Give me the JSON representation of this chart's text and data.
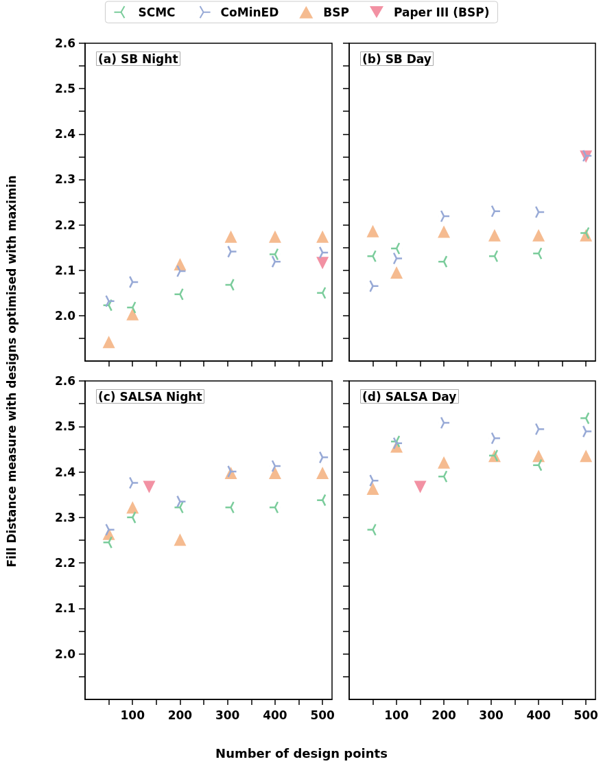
{
  "chart_data": [
    {
      "type": "scatter",
      "title": "(a) SB Night",
      "xlabel": "Number of design points",
      "ylabel": "Fill Distance measure with designs optimised with maximin",
      "legend": "top",
      "tick_labels": "y",
      "xlim": [
        0,
        520
      ],
      "xticks": [
        {
          "value": 50,
          "label": null
        },
        {
          "value": 100,
          "label": null
        },
        {
          "value": 150,
          "label": null
        },
        {
          "value": 200,
          "label": null
        },
        {
          "value": 250,
          "label": null
        },
        {
          "value": 300,
          "label": null
        },
        {
          "value": 350,
          "label": null
        },
        {
          "value": 400,
          "label": null
        },
        {
          "value": 450,
          "label": null
        },
        {
          "value": 500,
          "label": null
        }
      ],
      "ylim": [
        1.9,
        2.6
      ],
      "yticks": [
        {
          "value": 1.95,
          "label": null
        },
        {
          "value": 2,
          "label": "2.0"
        },
        {
          "value": 2.05,
          "label": null
        },
        2.1,
        {
          "value": 2.15,
          "label": null
        },
        2.2,
        {
          "value": 2.25,
          "label": null
        },
        2.3,
        {
          "value": 2.35,
          "label": null
        },
        2.4,
        {
          "value": 2.45,
          "label": null
        },
        2.5,
        {
          "value": 2.55,
          "label": null
        },
        2.6
      ],
      "series": [
        {
          "name": "SCMC",
          "color": "#7acc9b",
          "marker": "cross",
          "x": [
            50,
            100,
            200,
            307,
            400,
            500
          ],
          "values": [
            2.023,
            2.018,
            2.047,
            2.068,
            2.135,
            2.05
          ]
        },
        {
          "name": "CoMinED",
          "color": "#97a9d6",
          "marker": "cross",
          "x": [
            50,
            100,
            200,
            307,
            400,
            500
          ],
          "values": [
            2.032,
            2.074,
            2.098,
            2.141,
            2.119,
            2.139
          ]
        },
        {
          "name": "BSP",
          "color": "#f5bb90",
          "marker": "triangle",
          "x": [
            50,
            100,
            200,
            307,
            400,
            500
          ],
          "values": [
            1.942,
            2.003,
            2.113,
            2.174,
            2.174,
            2.174
          ]
        },
        {
          "name": "Paper III (BSP)",
          "color": "#f291a3",
          "marker": "triangle_down",
          "x": [
            500
          ],
          "values": [
            2.116
          ]
        }
      ]
    },
    {
      "type": "scatter",
      "title": "(b) SB Day",
      "tick_labels": false,
      "xlim": [
        0,
        520
      ],
      "xticks": [
        {
          "value": 50,
          "label": null
        },
        {
          "value": 100,
          "label": null
        },
        {
          "value": 150,
          "label": null
        },
        {
          "value": 200,
          "label": null
        },
        {
          "value": 250,
          "label": null
        },
        {
          "value": 300,
          "label": null
        },
        {
          "value": 350,
          "label": null
        },
        {
          "value": 400,
          "label": null
        },
        {
          "value": 450,
          "label": null
        },
        {
          "value": 500,
          "label": null
        }
      ],
      "ylim": [
        1.9,
        2.6
      ],
      "yticks": [
        {
          "value": 1.95,
          "label": null
        },
        {
          "value": 2,
          "label": null
        },
        {
          "value": 2.05,
          "label": null
        },
        {
          "value": 2.1,
          "label": null
        },
        {
          "value": 2.15,
          "label": null
        },
        {
          "value": 2.2,
          "label": null
        },
        {
          "value": 2.25,
          "label": null
        },
        {
          "value": 2.3,
          "label": null
        },
        {
          "value": 2.35,
          "label": null
        },
        {
          "value": 2.4,
          "label": null
        },
        {
          "value": 2.45,
          "label": null
        },
        {
          "value": 2.5,
          "label": null
        },
        {
          "value": 2.55,
          "label": null
        },
        {
          "value": 2.6,
          "label": null
        }
      ],
      "series": [
        {
          "name": "SCMC",
          "color": "#7acc9b",
          "marker": "cross",
          "x": [
            50,
            100,
            200,
            307,
            400,
            500
          ],
          "values": [
            2.131,
            2.148,
            2.119,
            2.131,
            2.137,
            2.182
          ]
        },
        {
          "name": "CoMinED",
          "color": "#97a9d6",
          "marker": "cross",
          "x": [
            50,
            100,
            200,
            307,
            400,
            500
          ],
          "values": [
            2.065,
            2.126,
            2.219,
            2.23,
            2.228,
            2.352
          ]
        },
        {
          "name": "BSP",
          "color": "#f5bb90",
          "marker": "triangle",
          "x": [
            50,
            100,
            200,
            307,
            400,
            500
          ],
          "values": [
            2.186,
            2.095,
            2.185,
            2.177,
            2.177,
            2.177
          ]
        },
        {
          "name": "Paper III (BSP)",
          "color": "#f291a3",
          "marker": "triangle_down",
          "x": [
            500
          ],
          "values": [
            2.35
          ]
        }
      ]
    },
    {
      "type": "scatter",
      "title": "(c) SALSA Night",
      "xlim": [
        0,
        520
      ],
      "xticks": [
        {
          "value": 50,
          "label": null
        },
        100,
        {
          "value": 150,
          "label": null
        },
        200,
        {
          "value": 250,
          "label": null
        },
        300,
        {
          "value": 350,
          "label": null
        },
        400,
        {
          "value": 450,
          "label": null
        },
        500
      ],
      "ylim": [
        1.9,
        2.6
      ],
      "yticks": [
        {
          "value": 1.95,
          "label": null
        },
        {
          "value": 2,
          "label": "2.0"
        },
        {
          "value": 2.05,
          "label": null
        },
        2.1,
        {
          "value": 2.15,
          "label": null
        },
        2.2,
        {
          "value": 2.25,
          "label": null
        },
        2.3,
        {
          "value": 2.35,
          "label": null
        },
        2.4,
        {
          "value": 2.45,
          "label": null
        },
        2.5,
        {
          "value": 2.55,
          "label": null
        },
        2.6
      ],
      "series": [
        {
          "name": "SCMC",
          "color": "#7acc9b",
          "marker": "cross",
          "x": [
            50,
            100,
            200,
            307,
            400,
            500
          ],
          "values": [
            2.245,
            2.3,
            2.322,
            2.322,
            2.322,
            2.338
          ]
        },
        {
          "name": "CoMinED",
          "color": "#97a9d6",
          "marker": "cross",
          "x": [
            50,
            100,
            200,
            307,
            400,
            500
          ],
          "values": [
            2.273,
            2.376,
            2.335,
            2.401,
            2.413,
            2.432
          ]
        },
        {
          "name": "BSP",
          "color": "#f5bb90",
          "marker": "triangle",
          "x": [
            50,
            100,
            200,
            307,
            400,
            500
          ],
          "values": [
            2.264,
            2.322,
            2.251,
            2.398,
            2.398,
            2.398
          ]
        },
        {
          "name": "Paper III (BSP)",
          "color": "#f291a3",
          "marker": "triangle_down",
          "x": [
            135
          ],
          "values": [
            2.367
          ]
        }
      ]
    },
    {
      "type": "scatter",
      "title": "(d) SALSA Day",
      "tick_labels": "x",
      "xlim": [
        0,
        520
      ],
      "xticks": [
        {
          "value": 50,
          "label": null
        },
        100,
        {
          "value": 150,
          "label": null
        },
        200,
        {
          "value": 250,
          "label": null
        },
        300,
        {
          "value": 350,
          "label": null
        },
        400,
        {
          "value": 450,
          "label": null
        },
        500
      ],
      "ylim": [
        1.9,
        2.6
      ],
      "yticks": [
        {
          "value": 1.95,
          "label": null
        },
        {
          "value": 2,
          "label": null
        },
        {
          "value": 2.05,
          "label": null
        },
        {
          "value": 2.1,
          "label": null
        },
        {
          "value": 2.15,
          "label": null
        },
        {
          "value": 2.2,
          "label": null
        },
        {
          "value": 2.25,
          "label": null
        },
        {
          "value": 2.3,
          "label": null
        },
        {
          "value": 2.35,
          "label": null
        },
        {
          "value": 2.4,
          "label": null
        },
        {
          "value": 2.45,
          "label": null
        },
        {
          "value": 2.5,
          "label": null
        },
        {
          "value": 2.55,
          "label": null
        },
        {
          "value": 2.6,
          "label": null
        }
      ],
      "series": [
        {
          "name": "SCMC",
          "color": "#7acc9b",
          "marker": "cross",
          "x": [
            50,
            100,
            200,
            307,
            400,
            500
          ],
          "values": [
            2.273,
            2.467,
            2.39,
            2.436,
            2.415,
            2.518
          ]
        },
        {
          "name": "CoMinED",
          "color": "#97a9d6",
          "marker": "cross",
          "x": [
            50,
            100,
            200,
            307,
            400,
            500
          ],
          "values": [
            2.381,
            2.463,
            2.508,
            2.474,
            2.494,
            2.489
          ]
        },
        {
          "name": "BSP",
          "color": "#f5bb90",
          "marker": "triangle",
          "x": [
            50,
            100,
            200,
            307,
            400,
            500
          ],
          "values": [
            2.363,
            2.456,
            2.421,
            2.435,
            2.435,
            2.435
          ]
        },
        {
          "name": "Paper III (BSP)",
          "color": "#f291a3",
          "marker": "triangle_down",
          "x": [
            150
          ],
          "values": [
            2.367
          ]
        }
      ]
    }
  ]
}
